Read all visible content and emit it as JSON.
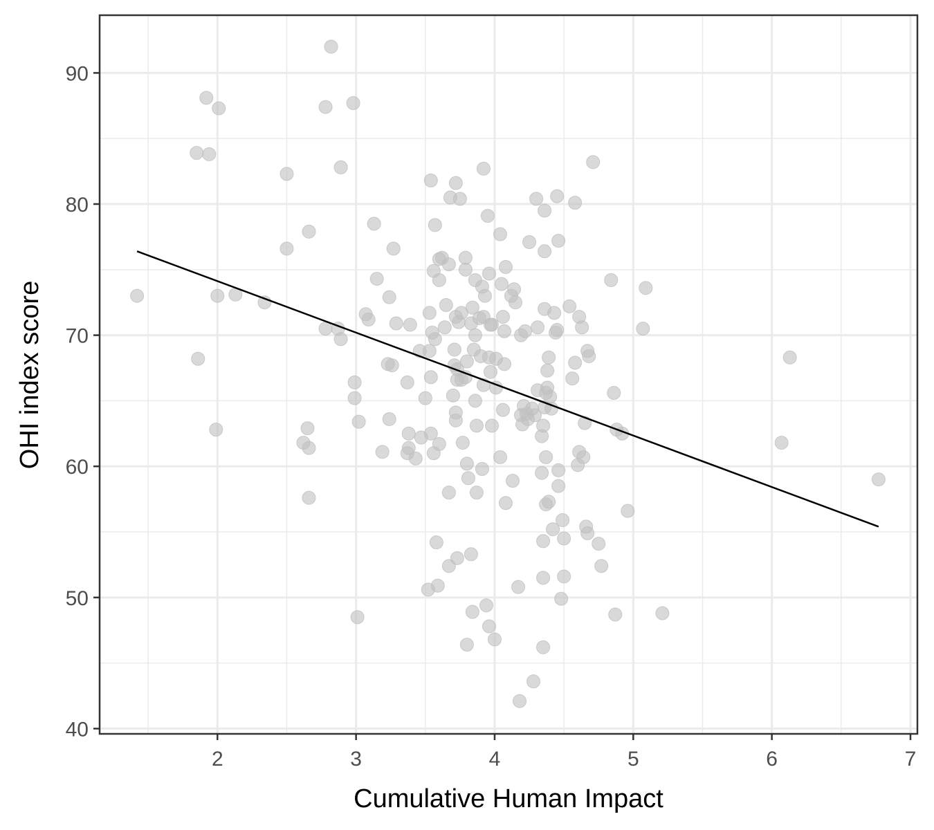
{
  "chart_data": {
    "type": "scatter",
    "xlabel": "Cumulative Human Impact",
    "ylabel": "OHI index score",
    "xlim": [
      1.15,
      7.05
    ],
    "ylim": [
      39.6,
      94.4
    ],
    "x_ticks": [
      2,
      3,
      4,
      5,
      6,
      7
    ],
    "y_ticks": [
      40,
      50,
      60,
      70,
      80,
      90
    ],
    "grid": true,
    "legend": "none",
    "colors": {
      "points": "#bfbfbf",
      "trend": "#000000"
    },
    "trend_line": {
      "x": [
        1.42,
        6.77
      ],
      "y": [
        76.4,
        55.4
      ]
    },
    "points": [
      [
        2.82,
        92.0
      ],
      [
        1.92,
        88.1
      ],
      [
        2.01,
        87.3
      ],
      [
        2.78,
        87.4
      ],
      [
        2.98,
        87.7
      ],
      [
        1.85,
        83.9
      ],
      [
        1.94,
        83.8
      ],
      [
        2.89,
        82.8
      ],
      [
        2.5,
        82.3
      ],
      [
        3.54,
        81.8
      ],
      [
        3.72,
        81.6
      ],
      [
        3.92,
        82.7
      ],
      [
        4.71,
        83.2
      ],
      [
        3.68,
        80.5
      ],
      [
        3.75,
        80.4
      ],
      [
        4.3,
        80.4
      ],
      [
        4.45,
        80.6
      ],
      [
        4.58,
        80.1
      ],
      [
        4.36,
        79.5
      ],
      [
        3.13,
        78.5
      ],
      [
        3.57,
        78.4
      ],
      [
        2.66,
        77.9
      ],
      [
        3.95,
        79.1
      ],
      [
        4.04,
        77.7
      ],
      [
        4.25,
        77.1
      ],
      [
        4.46,
        77.2
      ],
      [
        2.5,
        76.6
      ],
      [
        3.27,
        76.6
      ],
      [
        4.36,
        76.4
      ],
      [
        3.6,
        75.8
      ],
      [
        3.62,
        75.9
      ],
      [
        3.67,
        75.4
      ],
      [
        3.79,
        75.9
      ],
      [
        4.08,
        75.2
      ],
      [
        3.56,
        74.9
      ],
      [
        3.79,
        75.0
      ],
      [
        3.96,
        74.7
      ],
      [
        3.15,
        74.3
      ],
      [
        3.6,
        74.2
      ],
      [
        3.86,
        74.2
      ],
      [
        3.91,
        73.7
      ],
      [
        4.05,
        73.9
      ],
      [
        4.12,
        73.0
      ],
      [
        4.14,
        73.5
      ],
      [
        4.84,
        74.2
      ],
      [
        5.09,
        73.6
      ],
      [
        1.42,
        73.0
      ],
      [
        2.0,
        73.0
      ],
      [
        2.13,
        73.1
      ],
      [
        2.34,
        72.5
      ],
      [
        3.07,
        71.6
      ],
      [
        3.09,
        71.2
      ],
      [
        3.24,
        72.9
      ],
      [
        3.53,
        71.7
      ],
      [
        3.65,
        72.3
      ],
      [
        3.72,
        71.4
      ],
      [
        3.76,
        71.7
      ],
      [
        3.84,
        72.1
      ],
      [
        3.89,
        71.3
      ],
      [
        3.93,
        73.0
      ],
      [
        3.98,
        70.8
      ],
      [
        3.92,
        71.4
      ],
      [
        4.15,
        72.5
      ],
      [
        4.06,
        71.4
      ],
      [
        4.36,
        72.0
      ],
      [
        4.43,
        71.7
      ],
      [
        4.54,
        72.2
      ],
      [
        4.61,
        71.4
      ],
      [
        3.29,
        70.9
      ],
      [
        3.39,
        70.8
      ],
      [
        3.55,
        70.2
      ],
      [
        3.64,
        70.6
      ],
      [
        3.74,
        71.0
      ],
      [
        3.83,
        70.9
      ],
      [
        3.86,
        70.0
      ],
      [
        3.97,
        70.8
      ],
      [
        4.07,
        70.3
      ],
      [
        4.19,
        70.0
      ],
      [
        4.22,
        70.3
      ],
      [
        4.31,
        70.6
      ],
      [
        4.44,
        70.2
      ],
      [
        4.45,
        70.4
      ],
      [
        4.63,
        70.6
      ],
      [
        2.78,
        70.5
      ],
      [
        2.87,
        70.5
      ],
      [
        5.07,
        70.5
      ],
      [
        1.86,
        68.2
      ],
      [
        2.89,
        69.7
      ],
      [
        3.57,
        69.7
      ],
      [
        3.46,
        68.8
      ],
      [
        3.53,
        68.8
      ],
      [
        3.71,
        68.9
      ],
      [
        3.85,
        68.9
      ],
      [
        3.9,
        68.4
      ],
      [
        3.96,
        68.3
      ],
      [
        4.01,
        68.2
      ],
      [
        4.67,
        68.8
      ],
      [
        4.68,
        68.4
      ],
      [
        4.39,
        68.3
      ],
      [
        6.13,
        68.3
      ],
      [
        3.23,
        67.8
      ],
      [
        3.26,
        67.7
      ],
      [
        3.71,
        67.7
      ],
      [
        3.8,
        68.0
      ],
      [
        3.73,
        67.4
      ],
      [
        3.76,
        66.6
      ],
      [
        3.79,
        66.8
      ],
      [
        3.97,
        67.2
      ],
      [
        4.07,
        67.8
      ],
      [
        4.38,
        67.3
      ],
      [
        4.58,
        67.9
      ],
      [
        4.56,
        66.7
      ],
      [
        2.99,
        66.4
      ],
      [
        3.37,
        66.4
      ],
      [
        3.54,
        66.8
      ],
      [
        3.73,
        66.6
      ],
      [
        3.92,
        66.2
      ],
      [
        4.01,
        66.0
      ],
      [
        4.31,
        65.8
      ],
      [
        4.38,
        66.0
      ],
      [
        4.37,
        65.6
      ],
      [
        4.4,
        65.3
      ],
      [
        2.99,
        65.2
      ],
      [
        3.5,
        65.2
      ],
      [
        3.7,
        65.4
      ],
      [
        3.86,
        65.0
      ],
      [
        4.21,
        64.6
      ],
      [
        4.27,
        64.4
      ],
      [
        4.36,
        64.5
      ],
      [
        4.41,
        64.4
      ],
      [
        4.86,
        65.6
      ],
      [
        3.72,
        64.1
      ],
      [
        3.72,
        63.5
      ],
      [
        4.06,
        64.3
      ],
      [
        4.19,
        63.9
      ],
      [
        4.24,
        63.6
      ],
      [
        4.23,
        64.0
      ],
      [
        4.29,
        63.9
      ],
      [
        4.65,
        63.3
      ],
      [
        3.02,
        63.4
      ],
      [
        3.24,
        63.6
      ],
      [
        3.87,
        63.1
      ],
      [
        3.98,
        63.1
      ],
      [
        4.2,
        63.2
      ],
      [
        4.35,
        63.1
      ],
      [
        1.99,
        62.8
      ],
      [
        2.65,
        62.9
      ],
      [
        2.62,
        61.8
      ],
      [
        2.66,
        61.4
      ],
      [
        3.38,
        62.5
      ],
      [
        3.47,
        62.2
      ],
      [
        3.54,
        62.5
      ],
      [
        3.6,
        61.7
      ],
      [
        3.77,
        61.8
      ],
      [
        4.34,
        62.3
      ],
      [
        4.88,
        62.8
      ],
      [
        4.92,
        62.5
      ],
      [
        6.07,
        61.8
      ],
      [
        3.19,
        61.1
      ],
      [
        3.37,
        61.0
      ],
      [
        3.38,
        61.4
      ],
      [
        3.43,
        60.6
      ],
      [
        3.56,
        61.0
      ],
      [
        4.04,
        60.7
      ],
      [
        4.37,
        60.7
      ],
      [
        4.61,
        61.1
      ],
      [
        4.64,
        60.7
      ],
      [
        4.6,
        60.1
      ],
      [
        3.8,
        60.2
      ],
      [
        3.91,
        59.8
      ],
      [
        4.34,
        59.5
      ],
      [
        4.46,
        59.7
      ],
      [
        3.81,
        59.1
      ],
      [
        4.13,
        58.9
      ],
      [
        4.46,
        58.5
      ],
      [
        6.77,
        59.0
      ],
      [
        2.66,
        57.6
      ],
      [
        3.67,
        58.0
      ],
      [
        3.87,
        58.0
      ],
      [
        4.08,
        57.2
      ],
      [
        4.37,
        57.1
      ],
      [
        4.39,
        57.3
      ],
      [
        4.96,
        56.6
      ],
      [
        4.42,
        55.2
      ],
      [
        4.49,
        55.9
      ],
      [
        4.5,
        54.5
      ],
      [
        4.66,
        55.4
      ],
      [
        4.67,
        54.9
      ],
      [
        4.75,
        54.1
      ],
      [
        3.58,
        54.2
      ],
      [
        3.73,
        53.0
      ],
      [
        3.83,
        53.3
      ],
      [
        4.35,
        54.3
      ],
      [
        3.67,
        52.4
      ],
      [
        4.77,
        52.4
      ],
      [
        4.35,
        51.5
      ],
      [
        4.5,
        51.6
      ],
      [
        3.52,
        50.6
      ],
      [
        3.59,
        50.9
      ],
      [
        4.17,
        50.8
      ],
      [
        4.48,
        49.9
      ],
      [
        3.94,
        49.4
      ],
      [
        3.84,
        48.9
      ],
      [
        3.01,
        48.5
      ],
      [
        4.87,
        48.7
      ],
      [
        5.21,
        48.8
      ],
      [
        3.96,
        47.8
      ],
      [
        4.0,
        46.8
      ],
      [
        3.8,
        46.4
      ],
      [
        4.35,
        46.2
      ],
      [
        4.28,
        43.6
      ],
      [
        4.18,
        42.1
      ]
    ]
  }
}
